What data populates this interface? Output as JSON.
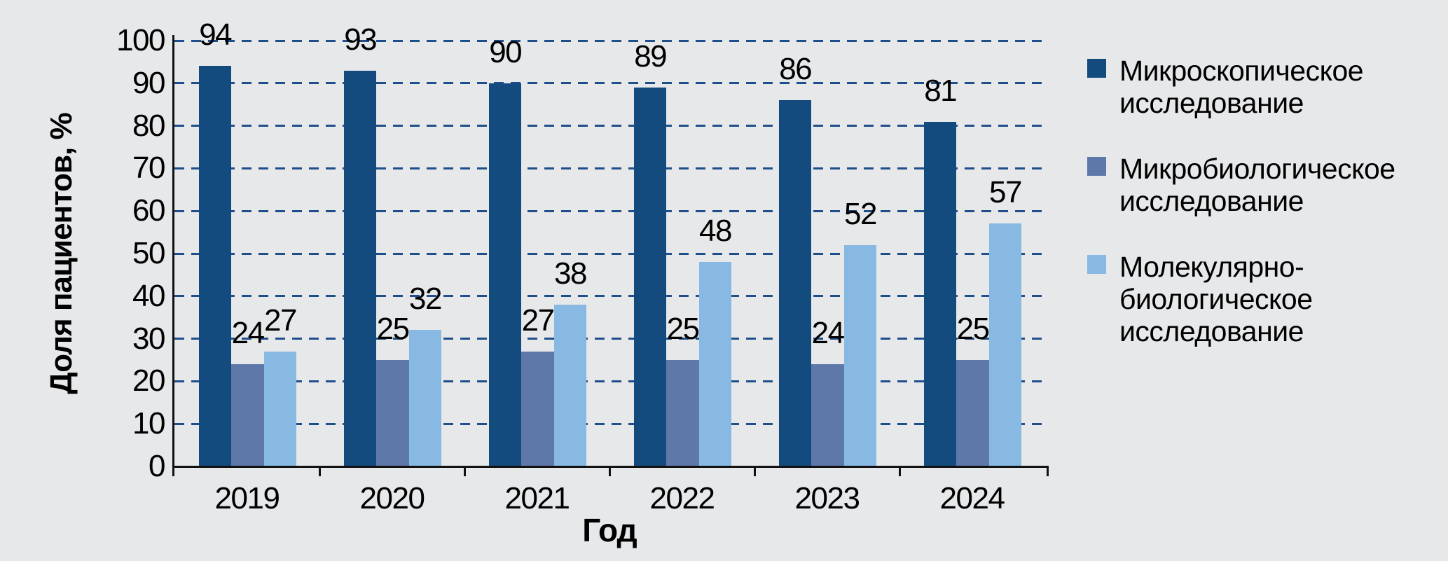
{
  "figure": {
    "background_color": "#E7E8EA",
    "gridline_color": "#1E4F8B",
    "axis_color": "#121212",
    "text_color": "#000000"
  },
  "chart_data": {
    "type": "bar",
    "title": "",
    "xlabel": "Год",
    "ylabel": "Доля пациентов, %",
    "categories": [
      "2019",
      "2020",
      "2021",
      "2022",
      "2023",
      "2024"
    ],
    "series": [
      {
        "name": "Микроскопическое исследование",
        "color": "#134B7E",
        "values": [
          94,
          93,
          90,
          89,
          86,
          81
        ],
        "legend_lines": [
          "Микроскопическое",
          "исследование"
        ]
      },
      {
        "name": "Микробиологическое исследование",
        "color": "#5E79A9",
        "values": [
          24,
          25,
          27,
          25,
          24,
          25
        ],
        "legend_lines": [
          "Микробиологическое",
          "исследование"
        ]
      },
      {
        "name": "Молекулярно-биологическое исследование",
        "color": "#87B9E3",
        "values": [
          27,
          32,
          38,
          48,
          52,
          57
        ],
        "legend_lines": [
          "Молекулярно-",
          "биологическое",
          "исследование"
        ]
      }
    ],
    "ylim": [
      0,
      100
    ],
    "ytick_step": 10,
    "grid": "horizontal-dashed",
    "legend_position": "right",
    "value_labels": true
  }
}
